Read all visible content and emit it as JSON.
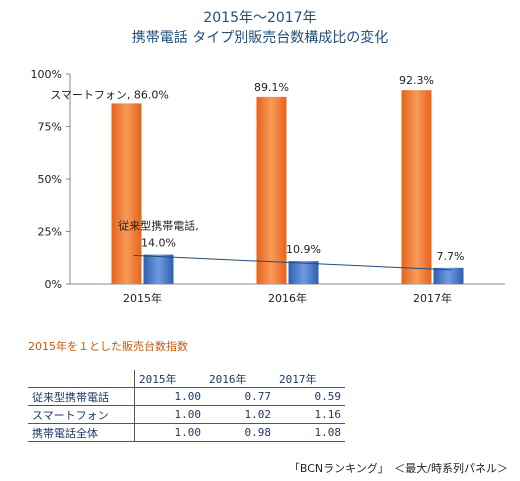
{
  "title_line1": "2015年〜2017年",
  "title_line2": "携帯電話 タイプ別販売台数構成比の変化",
  "chart_data": {
    "type": "bar",
    "title": "2015年〜2017年 携帯電話 タイプ別販売台数構成比の変化",
    "categories": [
      "2015年",
      "2016年",
      "2017年"
    ],
    "ylim": [
      0,
      100
    ],
    "yticks": [
      "0%",
      "25%",
      "50%",
      "75%",
      "100%"
    ],
    "series": [
      {
        "name": "スマートフォン",
        "values": [
          86.0,
          89.1,
          92.3
        ],
        "color": "#ed7d31",
        "labels": [
          "スマートフォン, 86.0%",
          "89.1%",
          "92.3%"
        ]
      },
      {
        "name": "従来型携帯電話",
        "values": [
          14.0,
          10.9,
          7.7
        ],
        "color": "#4472c4",
        "labels": [
          "14.0%",
          "10.9%",
          "7.7%"
        ],
        "label_name": "従来型携帯電話,"
      }
    ],
    "trendline": {
      "series": "従来型携帯電話",
      "color": "#1f4e79"
    },
    "grid": false
  },
  "index_table": {
    "title": "2015年を１とした販売台数指数",
    "columns": [
      "2015年",
      "2016年",
      "2017年"
    ],
    "rows": [
      {
        "label": "従来型携帯電話",
        "values": [
          "1.00",
          "0.77",
          "0.59"
        ]
      },
      {
        "label": "スマートフォン",
        "values": [
          "1.00",
          "1.02",
          "1.16"
        ]
      },
      {
        "label": "携帯電話全体",
        "values": [
          "1.00",
          "0.98",
          "1.08"
        ]
      }
    ]
  },
  "source": "「BCNランキング」　＜最大/時系列パネル＞"
}
